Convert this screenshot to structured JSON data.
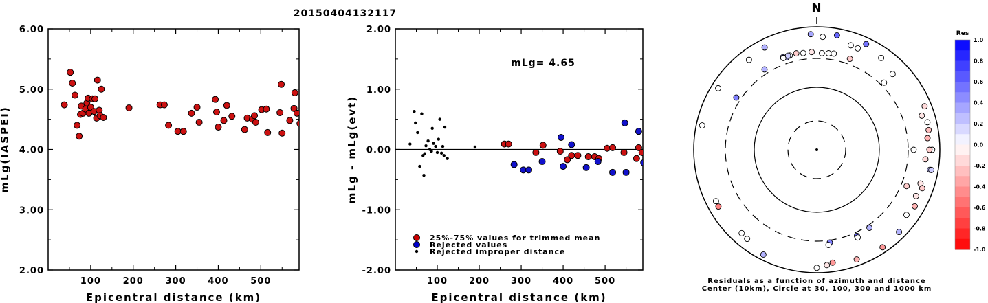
{
  "title": "20150404132117",
  "chart_data": [
    {
      "type": "scatter",
      "name": "left-panel",
      "xlabel": "Epicentral distance (km)",
      "ylabel": "mLg(IASPEI)",
      "xlim": [
        0,
        590
      ],
      "ylim": [
        2.0,
        6.0
      ],
      "xticks": [
        100,
        200,
        300,
        400,
        500
      ],
      "yticks": [
        2.0,
        3.0,
        4.0,
        5.0,
        6.0
      ],
      "ytick_labels": [
        "2.00",
        "3.00",
        "4.00",
        "5.00",
        "6.00"
      ],
      "points": [
        [
          38,
          4.74
        ],
        [
          52,
          5.28
        ],
        [
          57,
          5.1
        ],
        [
          63,
          4.9
        ],
        [
          68,
          4.4
        ],
        [
          73,
          4.22
        ],
        [
          76,
          4.58
        ],
        [
          78,
          4.72
        ],
        [
          82,
          4.6
        ],
        [
          88,
          4.67
        ],
        [
          91,
          4.77
        ],
        [
          94,
          4.85
        ],
        [
          96,
          4.6
        ],
        [
          100,
          4.7
        ],
        [
          104,
          4.84
        ],
        [
          108,
          4.63
        ],
        [
          110,
          4.84
        ],
        [
          114,
          4.52
        ],
        [
          116,
          5.15
        ],
        [
          120,
          4.65
        ],
        [
          122,
          4.56
        ],
        [
          125,
          5.0
        ],
        [
          130,
          4.53
        ],
        [
          190,
          4.69
        ],
        [
          263,
          4.74
        ],
        [
          273,
          4.74
        ],
        [
          283,
          4.4
        ],
        [
          305,
          4.3
        ],
        [
          318,
          4.3
        ],
        [
          337,
          4.6
        ],
        [
          350,
          4.7
        ],
        [
          355,
          4.45
        ],
        [
          393,
          4.83
        ],
        [
          396,
          4.62
        ],
        [
          400,
          4.37
        ],
        [
          413,
          4.48
        ],
        [
          420,
          4.73
        ],
        [
          432,
          4.55
        ],
        [
          462,
          4.33
        ],
        [
          468,
          4.52
        ],
        [
          480,
          4.5
        ],
        [
          485,
          4.56
        ],
        [
          488,
          4.45
        ],
        [
          502,
          4.66
        ],
        [
          513,
          4.67
        ],
        [
          516,
          4.28
        ],
        [
          545,
          4.61
        ],
        [
          548,
          5.08
        ],
        [
          550,
          4.27
        ],
        [
          568,
          4.48
        ],
        [
          578,
          4.68
        ],
        [
          580,
          4.94
        ],
        [
          585,
          4.6
        ],
        [
          592,
          4.43
        ]
      ]
    },
    {
      "type": "scatter",
      "name": "middle-panel",
      "xlabel": "Epicentral distance (km)",
      "ylabel": "mLg - mLg(evt)",
      "xlim": [
        0,
        590
      ],
      "ylim": [
        -2.0,
        2.0
      ],
      "xticks": [
        100,
        200,
        300,
        400,
        500
      ],
      "yticks": [
        -2.0,
        -1.0,
        0.0,
        1.0,
        2.0
      ],
      "ytick_labels": [
        "-2.00",
        "-1.00",
        "0.00",
        "1.00",
        "2.00"
      ],
      "annotation": "mLg= 4.65",
      "legend": [
        {
          "label": "25%-75% values for trimmed mean",
          "color": "#cc0000"
        },
        {
          "label": "Rejected values",
          "color": "#0000cc"
        },
        {
          "label": "Rejected improper distance",
          "color": "#000000"
        }
      ],
      "series_trimmed": [
        [
          260,
          0.09
        ],
        [
          270,
          0.09
        ],
        [
          335,
          -0.05
        ],
        [
          352,
          0.07
        ],
        [
          393,
          -0.03
        ],
        [
          410,
          -0.17
        ],
        [
          420,
          -0.1
        ],
        [
          435,
          -0.1
        ],
        [
          460,
          -0.12
        ],
        [
          475,
          -0.12
        ],
        [
          485,
          -0.15
        ],
        [
          505,
          0.02
        ],
        [
          518,
          0.03
        ],
        [
          545,
          -0.05
        ],
        [
          575,
          -0.15
        ],
        [
          580,
          0.03
        ],
        [
          588,
          -0.05
        ]
      ],
      "series_rejected": [
        [
          283,
          -0.25
        ],
        [
          305,
          -0.34
        ],
        [
          318,
          -0.34
        ],
        [
          350,
          -0.2
        ],
        [
          395,
          0.2
        ],
        [
          400,
          -0.28
        ],
        [
          420,
          0.08
        ],
        [
          455,
          -0.3
        ],
        [
          483,
          -0.2
        ],
        [
          518,
          -0.38
        ],
        [
          547,
          0.44
        ],
        [
          550,
          -0.38
        ],
        [
          580,
          0.3
        ],
        [
          592,
          -0.22
        ]
      ],
      "series_improper": [
        [
          35,
          0.09
        ],
        [
          45,
          0.63
        ],
        [
          48,
          0.44
        ],
        [
          53,
          0.28
        ],
        [
          58,
          -0.28
        ],
        [
          63,
          0.59
        ],
        [
          66,
          -0.1
        ],
        [
          68,
          -0.43
        ],
        [
          70,
          -0.07
        ],
        [
          73,
          0.06
        ],
        [
          78,
          0.14
        ],
        [
          82,
          0.0
        ],
        [
          86,
          -0.03
        ],
        [
          88,
          0.35
        ],
        [
          91,
          0.1
        ],
        [
          96,
          0.05
        ],
        [
          100,
          -0.05
        ],
        [
          103,
          0.17
        ],
        [
          106,
          0.5
        ],
        [
          110,
          -0.06
        ],
        [
          113,
          0.05
        ],
        [
          116,
          -0.1
        ],
        [
          118,
          0.37
        ],
        [
          124,
          -0.15
        ],
        [
          190,
          0.04
        ]
      ]
    },
    {
      "type": "polar-scatter",
      "name": "right-panel",
      "north_label": "N",
      "caption": [
        "Residuals as a function of azimuth and distance",
        "Center (10km), Circle at 30, 100, 300 and 1000 km"
      ],
      "distance_rings_km": [
        30,
        100,
        300,
        1000
      ],
      "colorbar": {
        "title": "Res",
        "ticks": [
          1.0,
          0.8,
          0.6,
          0.4,
          0.2,
          0.0,
          -0.2,
          -0.4,
          -0.6,
          -0.8,
          -1.0
        ],
        "tick_labels": [
          "1.0",
          "0.8",
          "0.6",
          "0.4",
          "0.2",
          "0.0",
          "-0.2",
          "-0.4",
          "-0.6",
          "-0.8",
          "-1.0"
        ],
        "max_color": "#0000ff",
        "min_color": "#ff0000"
      },
      "points": [
        {
          "az": 357,
          "dist_km": 840,
          "res": 0.35
        },
        {
          "az": 3,
          "dist_km": 780,
          "res": 0.0
        },
        {
          "az": 10,
          "dist_km": 850,
          "res": 0.6
        },
        {
          "az": 18,
          "dist_km": 710,
          "res": 0.0
        },
        {
          "az": 22,
          "dist_km": 700,
          "res": 0.0
        },
        {
          "az": 25,
          "dist_km": 860,
          "res": 0.55
        },
        {
          "az": 35,
          "dist_km": 760,
          "res": 0.0
        },
        {
          "az": 333,
          "dist_km": 820,
          "res": 0.3
        },
        {
          "az": 323,
          "dist_km": 770,
          "res": 0.0
        },
        {
          "az": 302,
          "dist_km": 850,
          "res": 0.0
        },
        {
          "az": 282,
          "dist_km": 870,
          "res": 0.0
        },
        {
          "az": 45,
          "dist_km": 650,
          "res": 0.0
        },
        {
          "az": 68,
          "dist_km": 850,
          "res": -0.15
        },
        {
          "az": 72,
          "dist_km": 720,
          "res": -0.1
        },
        {
          "az": 76,
          "dist_km": 800,
          "res": 0.0
        },
        {
          "az": 80,
          "dist_km": 790,
          "res": -0.25
        },
        {
          "az": 84,
          "dist_km": 740,
          "res": -0.3
        },
        {
          "az": 90,
          "dist_km": 830,
          "res": 0.0
        },
        {
          "az": 95,
          "dist_km": 690,
          "res": -0.15
        },
        {
          "az": 100,
          "dist_km": 820,
          "res": 0.25
        },
        {
          "az": 100,
          "dist_km": 850,
          "res": 0.2
        },
        {
          "az": 108,
          "dist_km": 690,
          "res": -0.1
        },
        {
          "az": 110,
          "dist_km": 760,
          "res": -0.2
        },
        {
          "az": 115,
          "dist_km": 700,
          "res": -0.1
        },
        {
          "az": 120,
          "dist_km": 780,
          "res": -0.3
        },
        {
          "az": 126,
          "dist_km": 730,
          "res": 0.0
        },
        {
          "az": 90,
          "dist_km": 770,
          "res": -0.2
        },
        {
          "az": 135,
          "dist_km": 850,
          "res": 0.3
        },
        {
          "az": 146,
          "dist_km": 880,
          "res": -0.4
        },
        {
          "az": 160,
          "dist_km": 860,
          "res": -0.3
        },
        {
          "az": 172,
          "dist_km": 800,
          "res": -0.4
        },
        {
          "az": 175,
          "dist_km": 840,
          "res": -0.1
        },
        {
          "az": 180,
          "dist_km": 890,
          "res": 0.0
        },
        {
          "az": 207,
          "dist_km": 880,
          "res": 0.3
        },
        {
          "az": 218,
          "dist_km": 780,
          "res": 0.0
        },
        {
          "az": 222,
          "dist_km": 760,
          "res": 0.0
        },
        {
          "az": 240,
          "dist_km": 790,
          "res": -0.5
        },
        {
          "az": 243,
          "dist_km": 780,
          "res": 0.0
        },
        {
          "az": 340,
          "dist_km": 460,
          "res": 0.4
        },
        {
          "az": 342,
          "dist_km": 430,
          "res": 0.3
        },
        {
          "az": 348,
          "dist_km": 460,
          "res": -0.2
        },
        {
          "az": 352,
          "dist_km": 440,
          "res": 0.0
        },
        {
          "az": 3,
          "dist_km": 420,
          "res": 0.0
        },
        {
          "az": 7,
          "dist_km": 430,
          "res": 0.0
        },
        {
          "az": 10,
          "dist_km": 440,
          "res": 0.0
        },
        {
          "az": 20,
          "dist_km": 420,
          "res": -0.2
        },
        {
          "az": 45,
          "dist_km": 380,
          "res": 0.0
        },
        {
          "az": 327,
          "dist_km": 400,
          "res": 0.3
        },
        {
          "az": 303,
          "dist_km": 400,
          "res": 0.5
        },
        {
          "az": 90,
          "dist_km": 420,
          "res": 0.0
        },
        {
          "az": 112,
          "dist_km": 420,
          "res": -0.2
        },
        {
          "az": 146,
          "dist_km": 360,
          "res": 0.3
        },
        {
          "az": 155,
          "dist_km": 380,
          "res": 0.6
        },
        {
          "az": 155,
          "dist_km": 420,
          "res": 0.0
        },
        {
          "az": 172,
          "dist_km": 350,
          "res": 0.5
        },
        {
          "az": 173,
          "dist_km": 400,
          "res": 0.0
        },
        {
          "az": 340,
          "dist_km": 440,
          "res": 0.0
        },
        {
          "az": 344,
          "dist_km": 448,
          "res": 0.0
        },
        {
          "az": 357,
          "dist_km": 445,
          "res": -0.1
        },
        {
          "az": 343,
          "dist_km": 455,
          "res": 0.2
        }
      ]
    }
  ]
}
